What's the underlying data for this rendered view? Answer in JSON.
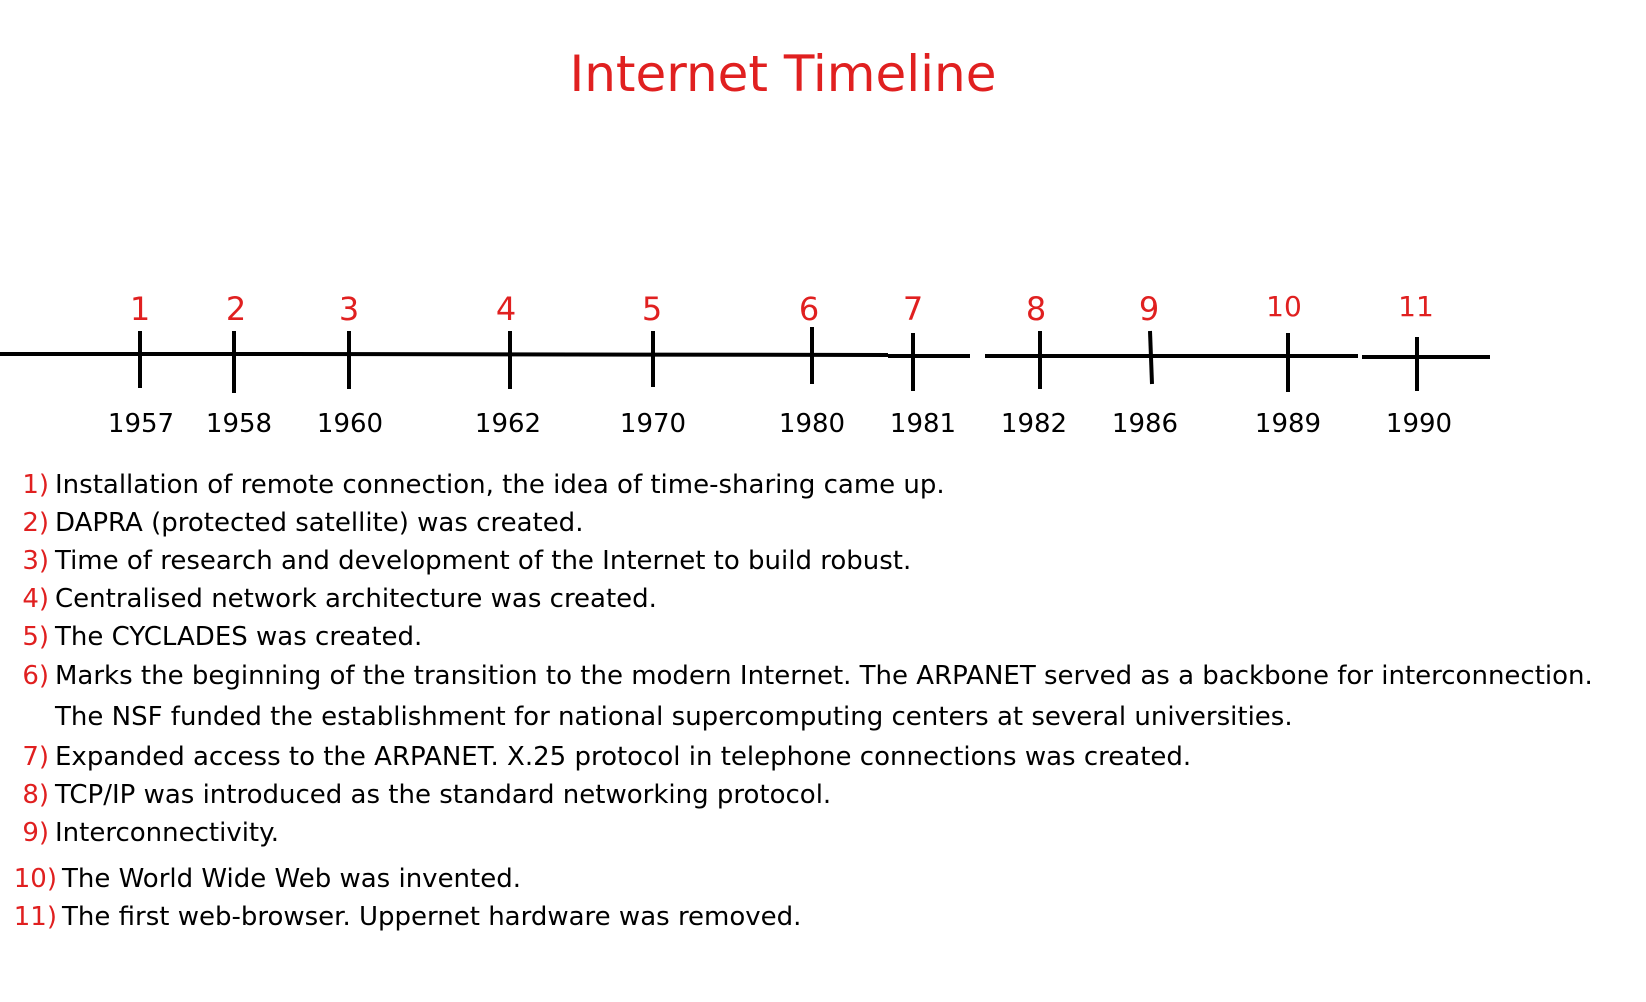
{
  "title": "Internet Timeline",
  "colors": {
    "accent": "#e02020",
    "line": "#000000",
    "text": "#000000"
  },
  "timeline": {
    "markers": [
      {
        "number": "1",
        "year": "1957"
      },
      {
        "number": "2",
        "year": "1958"
      },
      {
        "number": "3",
        "year": "1960"
      },
      {
        "number": "4",
        "year": "1962"
      },
      {
        "number": "5",
        "year": "1970"
      },
      {
        "number": "6",
        "year": "1980"
      },
      {
        "number": "7",
        "year": "1981"
      },
      {
        "number": "8",
        "year": "1982"
      },
      {
        "number": "9",
        "year": "1986"
      },
      {
        "number": "10",
        "year": "1989"
      },
      {
        "number": "11",
        "year": "1990"
      }
    ]
  },
  "events": [
    {
      "number": "1)",
      "lines": [
        "Installation of remote connection, the idea of time-sharing came up."
      ]
    },
    {
      "number": "2)",
      "lines": [
        "DAPRA (protected satellite) was created."
      ]
    },
    {
      "number": "3)",
      "lines": [
        "Time of research and development of the Internet to build robust."
      ]
    },
    {
      "number": "4)",
      "lines": [
        "Centralised network architecture was created."
      ]
    },
    {
      "number": "5)",
      "lines": [
        "The CYCLADES was created."
      ]
    },
    {
      "number": "6)",
      "lines": [
        "Marks the beginning of the transition to the modern Internet. The ARPANET served as a backbone for interconnection.",
        "The NSF funded the establishment for national supercomputing centers at several universities."
      ]
    },
    {
      "number": "7)",
      "lines": [
        "Expanded access to the ARPANET. X.25 protocol in telephone connections was created."
      ]
    },
    {
      "number": "8)",
      "lines": [
        "TCP/IP was introduced as the standard networking protocol."
      ]
    },
    {
      "number": "9)",
      "lines": [
        "Interconnectivity."
      ]
    },
    {
      "number": "10)",
      "lines": [
        "The World Wide Web was invented."
      ]
    },
    {
      "number": "11)",
      "lines": [
        "The first web-browser. Uppernet hardware was removed."
      ]
    }
  ]
}
